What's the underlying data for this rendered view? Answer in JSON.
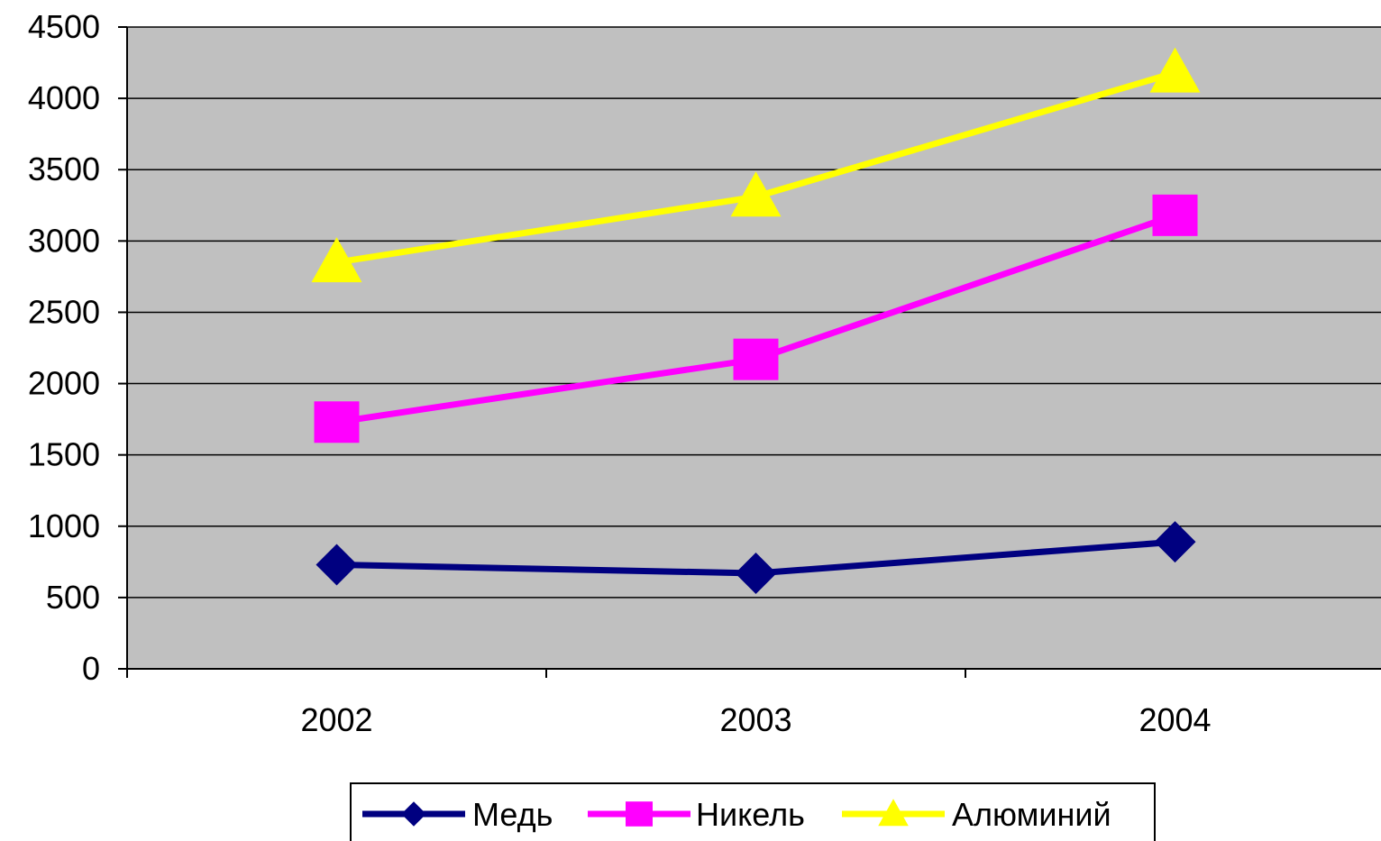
{
  "chart_data": {
    "type": "line",
    "categories": [
      "2002",
      "2003",
      "2004"
    ],
    "series": [
      {
        "name": "Медь",
        "values": [
          730,
          670,
          890
        ],
        "color": "#000080",
        "marker": "diamond"
      },
      {
        "name": "Никель",
        "values": [
          1730,
          2170,
          3180
        ],
        "color": "#ff00ff",
        "marker": "square"
      },
      {
        "name": "Алюминий",
        "values": [
          2850,
          3310,
          4180
        ],
        "color": "#ffff00",
        "marker": "triangle"
      }
    ],
    "ylim": [
      0,
      4500
    ],
    "yticks": [
      "0",
      "500",
      "1000",
      "1500",
      "2000",
      "2500",
      "3000",
      "3500",
      "4000",
      "4500"
    ],
    "title": "",
    "xlabel": "",
    "ylabel": "",
    "grid": true,
    "plot_background": "#c0c0c0",
    "legend_position": "bottom"
  }
}
